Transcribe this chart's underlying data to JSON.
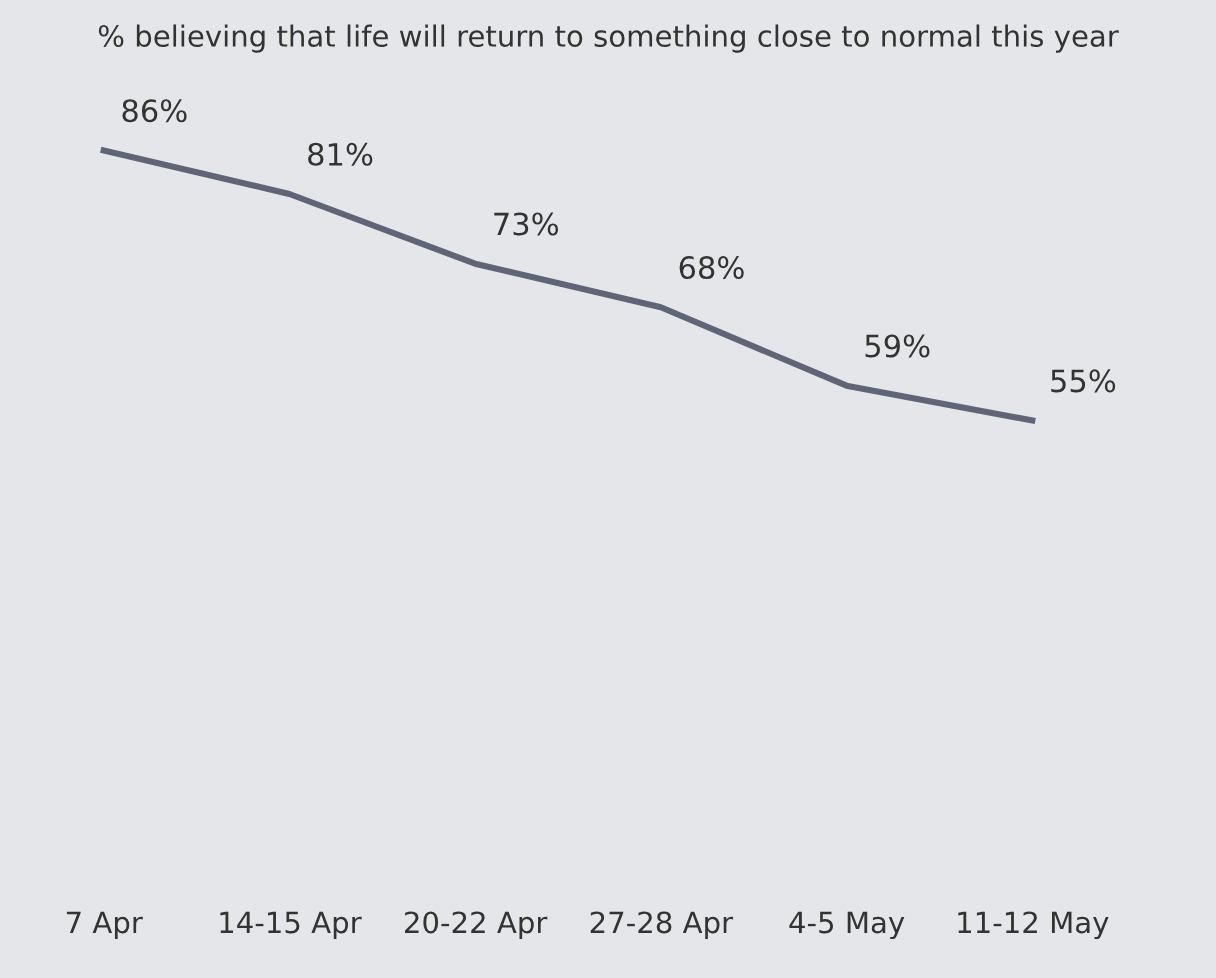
{
  "chart_data": {
    "type": "line",
    "title": "% believing that life will return to something close to normal this year",
    "categories": [
      "7 Apr",
      "14-15 Apr",
      "20-22 Apr",
      "27-28 Apr",
      "4-5 May",
      "11-12 May"
    ],
    "series": [
      {
        "color": "#5f6577",
        "values": [
          86,
          81,
          73,
          68,
          59,
          55
        ],
        "value_labels": [
          "86%",
          "81%",
          "73%",
          "68%",
          "59%",
          "55%"
        ]
      }
    ]
  }
}
